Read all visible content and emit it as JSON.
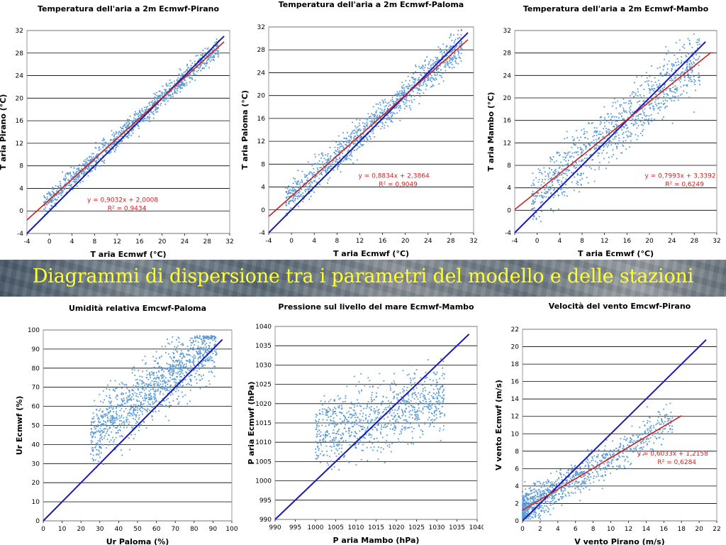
{
  "banner": {
    "text": "Diagrammi di dispersione tra i parametri del modello e delle stazioni"
  },
  "charts": [
    {
      "type": "scatter",
      "title": "Temperatura dell'aria a 2m Ecmwf-Pirano",
      "xlabel": "T aria Ecmwf (°C)",
      "ylabel": "T aria Pirano (°C)",
      "xlim": [
        -4,
        32
      ],
      "ylim": [
        -4,
        32
      ],
      "xticks": [
        -4,
        0,
        4,
        8,
        12,
        16,
        20,
        24,
        28,
        32
      ],
      "yticks": [
        -4,
        0,
        4,
        8,
        12,
        16,
        20,
        24,
        28,
        32
      ],
      "trend_line": {
        "slope": 0.9032,
        "intercept": 2.0008,
        "x_range": [
          -4,
          31
        ]
      },
      "identity_line": {
        "x_range": [
          -4,
          31
        ]
      },
      "equation": "y = 0,9032x + 2,0008",
      "r2": "R² = 0,9434",
      "equation_at": [
        13,
        1.6
      ],
      "cloud": {
        "n": 1100,
        "x_range": [
          -1,
          30
        ],
        "slope": 0.9032,
        "intercept": 2.0008,
        "spread": 1.3
      }
    },
    {
      "type": "scatter",
      "title": "Temperatura dell'aria a 2m Ecmwf-Paloma",
      "xlabel": "T aria Ecmwf (°C)",
      "ylabel": "T aria Paloma (°C)",
      "xlim": [
        -4,
        32
      ],
      "ylim": [
        -4,
        32
      ],
      "xticks": [
        -4,
        0,
        4,
        8,
        12,
        16,
        20,
        24,
        28,
        32
      ],
      "yticks": [
        -4,
        0,
        4,
        8,
        12,
        16,
        20,
        24,
        28,
        32
      ],
      "trend_line": {
        "slope": 0.8834,
        "intercept": 2.3864,
        "x_range": [
          -4,
          31
        ]
      },
      "identity_line": {
        "x_range": [
          -4,
          31
        ]
      },
      "equation": "y = 0,8834x + 2,3864",
      "r2": "R² = 0,9049",
      "equation_at": [
        18,
        5.6
      ],
      "cloud": {
        "n": 1100,
        "x_range": [
          -1,
          30
        ],
        "slope": 0.8834,
        "intercept": 2.3864,
        "spread": 1.9
      }
    },
    {
      "type": "scatter",
      "title": "Temperatura dell'aria a 2m Ecmwf-Mambo",
      "xlabel": "T aria Ecmwf (°C)",
      "ylabel": "T aria Mambo (°C)",
      "xlim": [
        -4,
        32
      ],
      "ylim": [
        -4,
        32
      ],
      "xticks": [
        -4,
        0,
        4,
        8,
        12,
        16,
        20,
        24,
        28,
        32
      ],
      "yticks": [
        -4,
        0,
        4,
        8,
        12,
        16,
        20,
        24,
        28,
        32
      ],
      "trend_line": {
        "slope": 0.7993,
        "intercept": 3.3392,
        "x_range": [
          -4,
          31
        ]
      },
      "identity_line": {
        "x_range": [
          -4,
          30
        ]
      },
      "equation": "y = 0,7993x + 3,3392",
      "r2": "R² = 0,6249",
      "equation_at": [
        25.5,
        5.8
      ],
      "cloud": {
        "n": 1000,
        "x_range": [
          -1,
          29
        ],
        "slope": 0.7993,
        "intercept": 3.3392,
        "spread": 3.6
      }
    },
    {
      "type": "scatter",
      "title": "Umidità relativa Emcwf-Paloma",
      "xlabel": "Ur Paloma (%)",
      "ylabel": "Ur Ecmwf (%)",
      "xlim": [
        0,
        100
      ],
      "ylim": [
        0,
        100
      ],
      "xticks": [
        0,
        10,
        20,
        30,
        40,
        50,
        60,
        70,
        80,
        90,
        100
      ],
      "yticks": [
        0,
        10,
        20,
        30,
        40,
        50,
        60,
        70,
        80,
        90,
        100
      ],
      "identity_line": {
        "x_range": [
          0,
          95
        ]
      },
      "cloud": {
        "n": 1200,
        "x_range": [
          25,
          92
        ],
        "slope": 0.75,
        "intercept": 25,
        "spread": 11,
        "ymax": 97
      }
    },
    {
      "type": "scatter",
      "title": "Pressione sul livello del mare Ecmwf-Mambo",
      "xlabel": "P aria Mambo (hPa)",
      "ylabel": "P aria Ecmwf (hPa)",
      "xlim": [
        990,
        1040
      ],
      "ylim": [
        990,
        1040
      ],
      "xticks": [
        990,
        995,
        1000,
        1005,
        1010,
        1015,
        1020,
        1025,
        1030,
        1035,
        1040
      ],
      "yticks": [
        990,
        995,
        1000,
        1005,
        1010,
        1015,
        1020,
        1025,
        1030,
        1035,
        1040
      ],
      "identity_line": {
        "x_range": [
          990,
          1038
        ]
      },
      "cloud": {
        "n": 900,
        "x_range": [
          1000,
          1032
        ],
        "slope": 0.3,
        "intercept": 712,
        "spread": 6
      }
    },
    {
      "type": "scatter",
      "title": "Velocità del vento Emcwf-Pirano",
      "xlabel": "V vento Pirano (m/s)",
      "ylabel": "V vento Ecmwf (m/s)",
      "xlim": [
        0,
        22
      ],
      "ylim": [
        0,
        22
      ],
      "xticks": [
        0,
        2,
        4,
        6,
        8,
        10,
        12,
        14,
        16,
        18,
        20,
        22
      ],
      "yticks": [
        0,
        2,
        4,
        6,
        8,
        10,
        12,
        14,
        16,
        18,
        20,
        22
      ],
      "trend_line": {
        "slope": 0.6033,
        "intercept": 1.2158,
        "x_range": [
          0,
          18
        ]
      },
      "identity_line": {
        "x_range": [
          0,
          20.8
        ]
      },
      "equation": "y = 0,6033x + 1,2158",
      "r2": "R² = 0,6284",
      "equation_at": [
        17,
        7.5
      ],
      "cloud": {
        "n": 1100,
        "x_range": [
          0,
          17
        ],
        "slope": 0.6033,
        "intercept": 1.2158,
        "spread": 1.4,
        "skew": true
      }
    }
  ],
  "colors": {
    "points": "#5b9bd5",
    "trend": "#cc2222",
    "identity": "#1a1ab5",
    "banner_text": "#ffff33"
  }
}
